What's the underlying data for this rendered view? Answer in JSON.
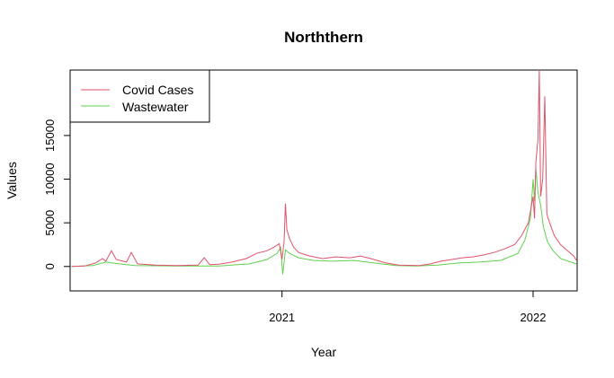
{
  "chart_data": {
    "type": "line",
    "title": "Norththern",
    "xlabel": "Year",
    "ylabel": "Values",
    "x_range": [
      "2020-02-28",
      "2022-03-06"
    ],
    "ylim": [
      -2800,
      22500
    ],
    "x_ticks": [
      {
        "date": "2021-01-01",
        "label": "2021"
      },
      {
        "date": "2022-01-01",
        "label": "2022"
      }
    ],
    "y_ticks": [
      {
        "value": 0,
        "label": "0"
      },
      {
        "value": 5000,
        "label": "5000"
      },
      {
        "value": 10000,
        "label": "10000"
      },
      {
        "value": 15000,
        "label": "15000"
      }
    ],
    "legend": {
      "position": "top-left",
      "entries": [
        {
          "name": "Covid Cases",
          "color": "#DF536B"
        },
        {
          "name": "Wastewater",
          "color": "#61D04F"
        }
      ]
    },
    "series": [
      {
        "name": "Covid Cases",
        "color": "#DF536B",
        "points": [
          [
            "2020-03-01",
            0
          ],
          [
            "2020-03-20",
            50
          ],
          [
            "2020-04-05",
            400
          ],
          [
            "2020-04-15",
            900
          ],
          [
            "2020-04-20",
            600
          ],
          [
            "2020-04-28",
            1800
          ],
          [
            "2020-05-05",
            800
          ],
          [
            "2020-05-20",
            500
          ],
          [
            "2020-05-27",
            1600
          ],
          [
            "2020-06-05",
            300
          ],
          [
            "2020-07-01",
            150
          ],
          [
            "2020-08-01",
            100
          ],
          [
            "2020-09-01",
            150
          ],
          [
            "2020-09-10",
            1000
          ],
          [
            "2020-09-18",
            200
          ],
          [
            "2020-10-01",
            250
          ],
          [
            "2020-10-20",
            500
          ],
          [
            "2020-11-10",
            900
          ],
          [
            "2020-11-25",
            1500
          ],
          [
            "2020-12-10",
            1800
          ],
          [
            "2020-12-20",
            2200
          ],
          [
            "2020-12-28",
            2600
          ],
          [
            "2021-01-01",
            800
          ],
          [
            "2021-01-04",
            2800
          ],
          [
            "2021-01-06",
            7200
          ],
          [
            "2021-01-08",
            4200
          ],
          [
            "2021-01-12",
            3200
          ],
          [
            "2021-01-18",
            2200
          ],
          [
            "2021-01-25",
            1600
          ],
          [
            "2021-02-10",
            1200
          ],
          [
            "2021-03-01",
            900
          ],
          [
            "2021-03-20",
            1100
          ],
          [
            "2021-04-10",
            1000
          ],
          [
            "2021-04-25",
            1200
          ],
          [
            "2021-05-10",
            900
          ],
          [
            "2021-06-01",
            400
          ],
          [
            "2021-06-20",
            150
          ],
          [
            "2021-07-20",
            100
          ],
          [
            "2021-08-05",
            300
          ],
          [
            "2021-08-20",
            600
          ],
          [
            "2021-09-05",
            800
          ],
          [
            "2021-09-20",
            1000
          ],
          [
            "2021-10-05",
            1100
          ],
          [
            "2021-10-20",
            1300
          ],
          [
            "2021-11-05",
            1600
          ],
          [
            "2021-11-20",
            2000
          ],
          [
            "2021-12-05",
            2500
          ],
          [
            "2021-12-15",
            3500
          ],
          [
            "2021-12-25",
            5000
          ],
          [
            "2022-01-01",
            8000
          ],
          [
            "2022-01-03",
            5500
          ],
          [
            "2022-01-05",
            12000
          ],
          [
            "2022-01-08",
            14500
          ],
          [
            "2022-01-10",
            22500
          ],
          [
            "2022-01-12",
            8000
          ],
          [
            "2022-01-15",
            10000
          ],
          [
            "2022-01-18",
            19500
          ],
          [
            "2022-01-21",
            6000
          ],
          [
            "2022-01-25",
            5000
          ],
          [
            "2022-02-01",
            3500
          ],
          [
            "2022-02-10",
            2500
          ],
          [
            "2022-02-20",
            1800
          ],
          [
            "2022-03-01",
            1200
          ],
          [
            "2022-03-05",
            700
          ]
        ]
      },
      {
        "name": "Wastewater",
        "color": "#61D04F",
        "points": [
          [
            "2020-03-01",
            0
          ],
          [
            "2020-04-01",
            100
          ],
          [
            "2020-04-20",
            500
          ],
          [
            "2020-05-10",
            300
          ],
          [
            "2020-06-01",
            100
          ],
          [
            "2020-08-01",
            50
          ],
          [
            "2020-10-01",
            50
          ],
          [
            "2020-11-15",
            300
          ],
          [
            "2020-12-10",
            800
          ],
          [
            "2020-12-25",
            1500
          ],
          [
            "2020-12-30",
            2200
          ],
          [
            "2021-01-02",
            -900
          ],
          [
            "2021-01-06",
            1900
          ],
          [
            "2021-01-12",
            1500
          ],
          [
            "2021-01-25",
            1000
          ],
          [
            "2021-02-15",
            700
          ],
          [
            "2021-03-15",
            600
          ],
          [
            "2021-04-15",
            700
          ],
          [
            "2021-05-15",
            400
          ],
          [
            "2021-06-15",
            100
          ],
          [
            "2021-07-15",
            50
          ],
          [
            "2021-08-15",
            150
          ],
          [
            "2021-09-15",
            400
          ],
          [
            "2021-10-15",
            500
          ],
          [
            "2021-11-15",
            700
          ],
          [
            "2021-12-10",
            1500
          ],
          [
            "2021-12-20",
            3000
          ],
          [
            "2021-12-28",
            5500
          ],
          [
            "2022-01-01",
            10000
          ],
          [
            "2022-01-03",
            7500
          ],
          [
            "2022-01-05",
            11200
          ],
          [
            "2022-01-08",
            8500
          ],
          [
            "2022-01-12",
            7000
          ],
          [
            "2022-01-16",
            4500
          ],
          [
            "2022-01-22",
            2800
          ],
          [
            "2022-01-30",
            1800
          ],
          [
            "2022-02-10",
            900
          ],
          [
            "2022-02-25",
            500
          ],
          [
            "2022-03-05",
            300
          ]
        ]
      }
    ]
  }
}
